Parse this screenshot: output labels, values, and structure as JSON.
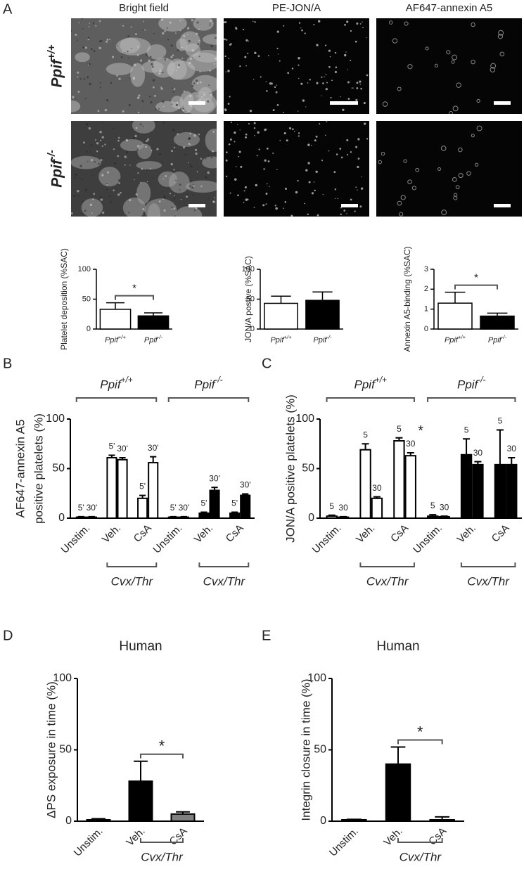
{
  "panel_labels": [
    "A",
    "B",
    "C",
    "D",
    "E"
  ],
  "micrographs": {
    "columns": [
      "Bright field",
      "PE-JON/A",
      "AF647-annexin A5"
    ],
    "rows": [
      "Ppif+/+",
      "Ppif-/-"
    ]
  },
  "chart_data": [
    {
      "type": "bar",
      "ylabel": "Platelet deposition (%SAC)",
      "categories": [
        "Ppif+/+",
        "Ppif-/-"
      ],
      "values": [
        33,
        22
      ],
      "errors": [
        11,
        5
      ],
      "colors": [
        "#ffffff",
        "#000000"
      ],
      "ylim": [
        0,
        100
      ],
      "yticks": [
        0,
        50,
        100
      ],
      "significance": {
        "label": "*",
        "between": [
          0,
          1
        ]
      }
    },
    {
      "type": "bar",
      "ylabel": "JON/A postive (%SAC)",
      "categories": [
        "Ppif+/+",
        "Ppif-/-"
      ],
      "values": [
        43,
        48
      ],
      "errors": [
        12,
        14
      ],
      "colors": [
        "#ffffff",
        "#000000"
      ],
      "ylim": [
        0,
        100
      ],
      "yticks": [
        0,
        50,
        100
      ]
    },
    {
      "type": "bar",
      "ylabel": "Annexin A5-binding (%SAC)",
      "categories": [
        "Ppif+/+",
        "Ppif-/-"
      ],
      "values": [
        1.3,
        0.65
      ],
      "errors": [
        0.55,
        0.15
      ],
      "colors": [
        "#ffffff",
        "#000000"
      ],
      "ylim": [
        0,
        3
      ],
      "yticks": [
        0,
        1,
        2,
        3
      ],
      "significance": {
        "label": "*",
        "between": [
          0,
          1
        ]
      }
    },
    {
      "type": "grouped_bar",
      "ylabel": [
        "AF647-annexin A5",
        "positive platelets (%)"
      ],
      "categories": [
        "Unstim.",
        "Veh.",
        "CsA",
        "Unstim.",
        "Veh.",
        "CsA"
      ],
      "groups": [
        "Ppif+/+",
        "Ppif-/-"
      ],
      "group_colors": [
        "#ffffff",
        "#000000"
      ],
      "bracket_label": "Cvx/Thr",
      "series": [
        {
          "name": "5'",
          "values": [
            1,
            61,
            20,
            1,
            5,
            5
          ],
          "errors": [
            0.5,
            2.5,
            3,
            0.5,
            1,
            1
          ]
        },
        {
          "name": "30'",
          "values": [
            1,
            59,
            56,
            1,
            28,
            23
          ],
          "errors": [
            0.5,
            2,
            6,
            0.5,
            3,
            1.5
          ]
        }
      ],
      "ylim": [
        0,
        100
      ],
      "yticks": [
        0,
        50,
        100
      ]
    },
    {
      "type": "grouped_bar",
      "ylabel": [
        "JON/A positive platelets (%)"
      ],
      "categories": [
        "Unstim.",
        "Veh.",
        "CsA",
        "Unstim.",
        "Veh.",
        "CsA"
      ],
      "groups": [
        "Ppif+/+",
        "Ppif-/-"
      ],
      "group_colors": [
        "#ffffff",
        "#000000"
      ],
      "bracket_label": "Cvx/Thr",
      "series": [
        {
          "name": "5",
          "values": [
            2,
            69,
            78,
            2,
            64,
            54
          ],
          "errors": [
            1,
            6,
            3,
            1.5,
            16,
            35
          ]
        },
        {
          "name": "30",
          "values": [
            1,
            20,
            63,
            1.5,
            54,
            54
          ],
          "errors": [
            0.5,
            1.5,
            3,
            0.5,
            3,
            7
          ]
        }
      ],
      "annotations": [
        {
          "label": "*",
          "series": 1,
          "category": 2
        }
      ],
      "ylim": [
        0,
        100
      ],
      "yticks": [
        0,
        50,
        100
      ]
    },
    {
      "type": "bar",
      "title": "Human",
      "ylabel": "ΔPS exposure in time (%)",
      "categories": [
        "Unstim.",
        "Veh.",
        "CsA"
      ],
      "values": [
        1,
        28,
        5
      ],
      "errors": [
        0.7,
        14,
        1.5
      ],
      "colors": [
        "#000000",
        "#000000",
        "#808080"
      ],
      "ylim": [
        0,
        100
      ],
      "yticks": [
        0,
        50,
        100
      ],
      "significance": {
        "label": "*",
        "between": [
          1,
          2
        ]
      },
      "bracket_label": "Cvx/Thr"
    },
    {
      "type": "bar",
      "title": "Human",
      "ylabel": "Integrin closure in time (%)",
      "categories": [
        "Unstim.",
        "Veh.",
        "CsA"
      ],
      "values": [
        1,
        40,
        1
      ],
      "errors": [
        0.3,
        12,
        2
      ],
      "colors": [
        "#000000",
        "#000000",
        "#808080"
      ],
      "ylim": [
        0,
        100
      ],
      "yticks": [
        0,
        50,
        100
      ],
      "significance": {
        "label": "*",
        "between": [
          1,
          2
        ]
      },
      "bracket_label": "Cvx/Thr"
    }
  ]
}
